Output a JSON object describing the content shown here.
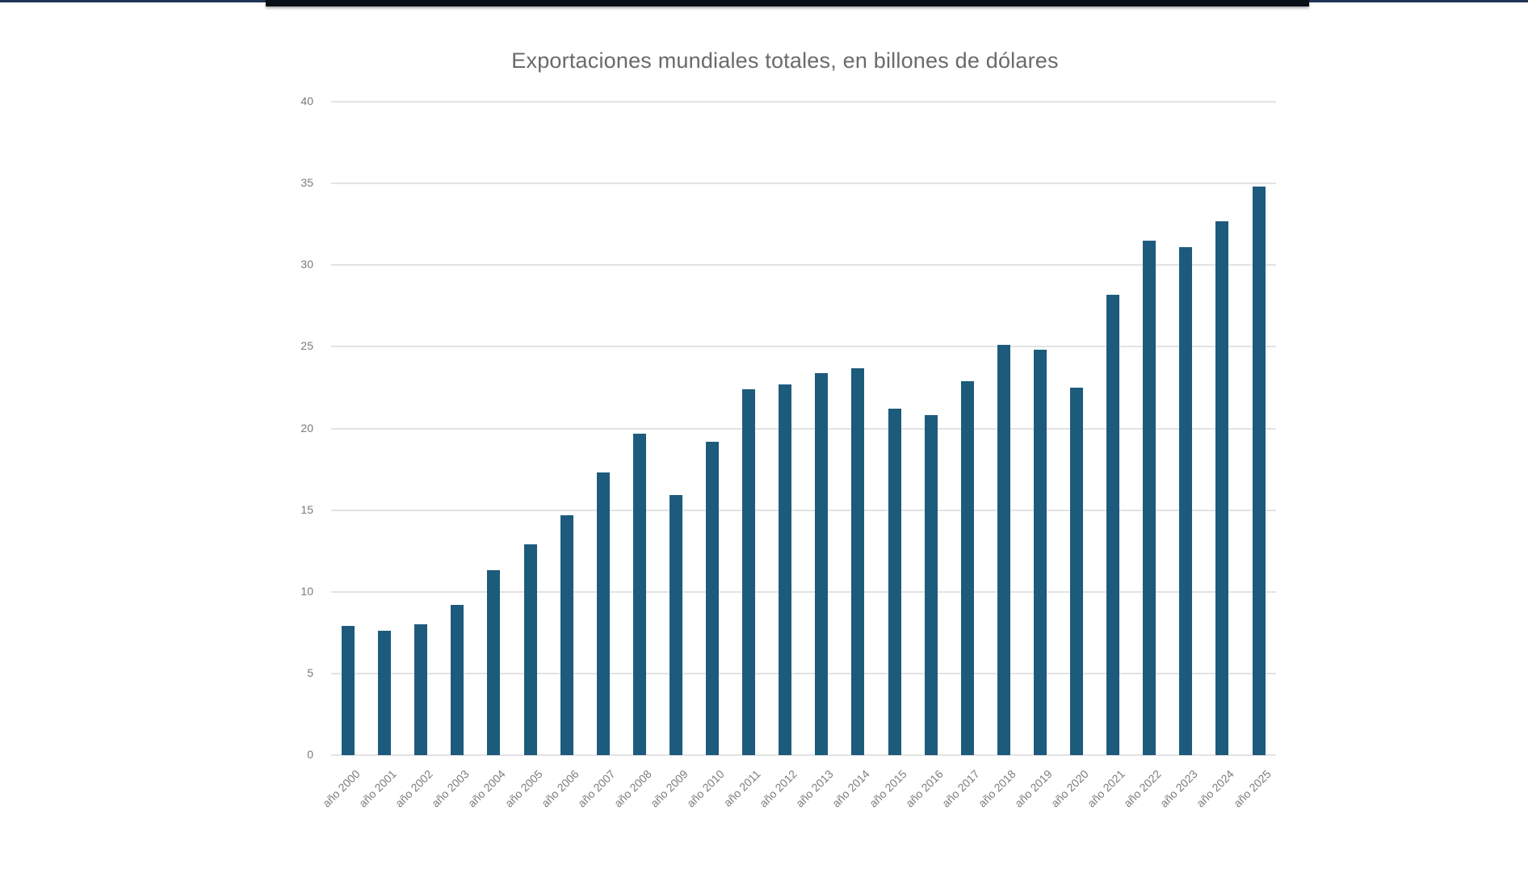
{
  "chart_data": {
    "type": "bar",
    "title": "Exportaciones mundiales totales, en billones de dólares",
    "xlabel": "",
    "ylabel": "",
    "ylim": [
      0,
      40
    ],
    "yticks": [
      "0",
      "5",
      "10",
      "15",
      "20",
      "25",
      "30",
      "35",
      "40"
    ],
    "grid": true,
    "legend": null,
    "bar_color": "#1d5b7c",
    "categories": [
      "año 2000",
      "año 2001",
      "año 2002",
      "año 2003",
      "año 2004",
      "año 2005",
      "año 2006",
      "año 2007",
      "año 2008",
      "año 2009",
      "año 2010",
      "año 2011",
      "año 2012",
      "año 2013",
      "año 2014",
      "año 2015",
      "año 2016",
      "año 2017",
      "año 2018",
      "año 2019",
      "año 2020",
      "año 2021",
      "año 2022",
      "año 2023",
      "año 2024",
      "año 2025"
    ],
    "values": [
      7.9,
      7.6,
      8.0,
      9.2,
      11.3,
      12.9,
      14.7,
      17.3,
      19.7,
      15.9,
      19.2,
      22.4,
      22.7,
      23.4,
      23.7,
      21.2,
      20.8,
      22.9,
      25.1,
      24.8,
      22.5,
      28.2,
      31.5,
      31.1,
      32.7,
      34.8
    ]
  }
}
